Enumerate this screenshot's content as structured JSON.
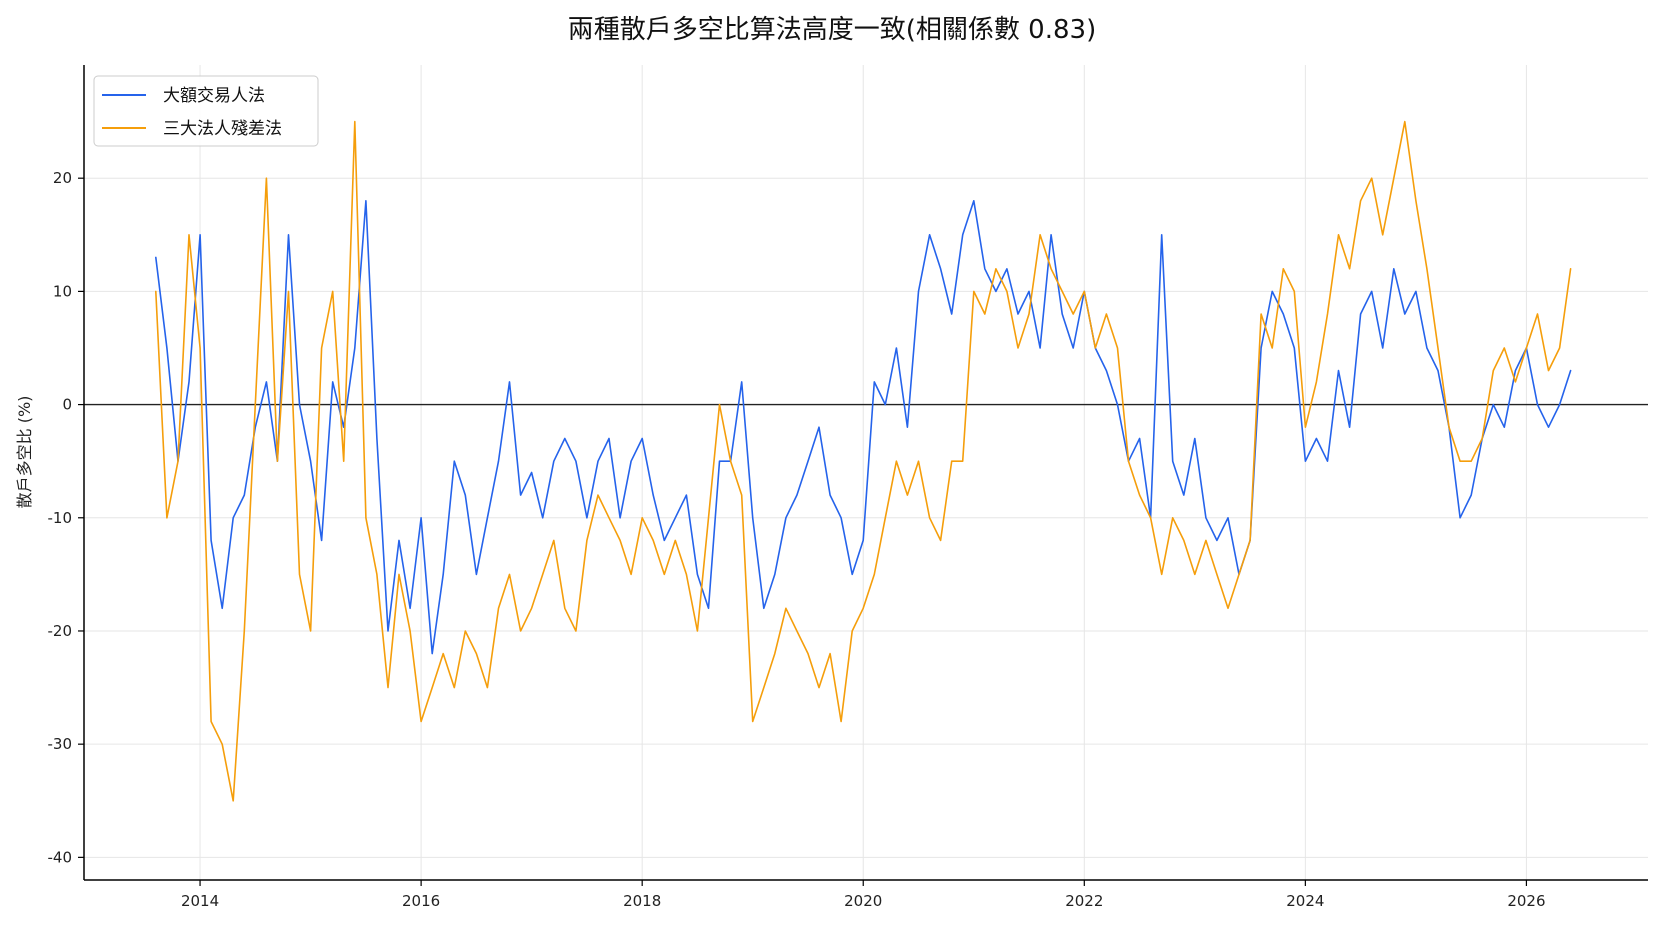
{
  "chart_data": {
    "type": "line",
    "title": "兩種散戶多空比算法高度一致(相關係數 0.83)",
    "xlabel": "",
    "ylabel": "散戶多空比 (%)",
    "xlim": [
      2012.95,
      2027.1
    ],
    "ylim": [
      -42,
      30
    ],
    "x_ticks": [
      2014,
      2016,
      2018,
      2020,
      2022,
      2024,
      2026
    ],
    "y_ticks": [
      -40,
      -30,
      -20,
      -10,
      0,
      10,
      20
    ],
    "grid": true,
    "legend_position": "top-left",
    "reference_line": 0,
    "series": [
      {
        "name": "大額交易人法",
        "color": "#2563eb",
        "x": [
          2013.6,
          2013.7,
          2013.8,
          2013.9,
          2014.0,
          2014.1,
          2014.2,
          2014.3,
          2014.4,
          2014.5,
          2014.6,
          2014.7,
          2014.8,
          2014.9,
          2015.0,
          2015.1,
          2015.2,
          2015.3,
          2015.4,
          2015.5,
          2015.6,
          2015.7,
          2015.8,
          2015.9,
          2016.0,
          2016.1,
          2016.2,
          2016.3,
          2016.4,
          2016.5,
          2016.6,
          2016.7,
          2016.8,
          2016.9,
          2017.0,
          2017.1,
          2017.2,
          2017.3,
          2017.4,
          2017.5,
          2017.6,
          2017.7,
          2017.8,
          2017.9,
          2018.0,
          2018.1,
          2018.2,
          2018.3,
          2018.4,
          2018.5,
          2018.6,
          2018.7,
          2018.8,
          2018.9,
          2019.0,
          2019.1,
          2019.2,
          2019.3,
          2019.4,
          2019.5,
          2019.6,
          2019.7,
          2019.8,
          2019.9,
          2020.0,
          2020.1,
          2020.2,
          2020.3,
          2020.4,
          2020.5,
          2020.6,
          2020.7,
          2020.8,
          2020.9,
          2021.0,
          2021.1,
          2021.2,
          2021.3,
          2021.4,
          2021.5,
          2021.6,
          2021.7,
          2021.8,
          2021.9,
          2022.0,
          2022.1,
          2022.2,
          2022.3,
          2022.4,
          2022.5,
          2022.6,
          2022.7,
          2022.8,
          2022.9,
          2023.0,
          2023.1,
          2023.2,
          2023.3,
          2023.4,
          2023.5,
          2023.6,
          2023.7,
          2023.8,
          2023.9,
          2024.0,
          2024.1,
          2024.2,
          2024.3,
          2024.4,
          2024.5,
          2024.6,
          2024.7,
          2024.8,
          2024.9,
          2025.0,
          2025.1,
          2025.2,
          2025.3,
          2025.4,
          2025.5,
          2025.6,
          2025.7,
          2025.8,
          2025.9,
          2026.0,
          2026.1,
          2026.2,
          2026.3,
          2026.4
        ],
        "y": [
          13,
          5,
          -5,
          2,
          15,
          -12,
          -18,
          -10,
          -8,
          -2,
          2,
          -5,
          15,
          0,
          -5,
          -12,
          2,
          -2,
          5,
          18,
          -3,
          -20,
          -12,
          -18,
          -10,
          -22,
          -15,
          -5,
          -8,
          -15,
          -10,
          -5,
          2,
          -8,
          -6,
          -10,
          -5,
          -3,
          -5,
          -10,
          -5,
          -3,
          -10,
          -5,
          -3,
          -8,
          -12,
          -10,
          -8,
          -15,
          -18,
          -5,
          -5,
          2,
          -10,
          -18,
          -15,
          -10,
          -8,
          -5,
          -2,
          -8,
          -10,
          -15,
          -12,
          2,
          0,
          5,
          -2,
          10,
          15,
          12,
          8,
          15,
          18,
          12,
          10,
          12,
          8,
          10,
          5,
          15,
          8,
          5,
          10,
          5,
          3,
          0,
          -5,
          -3,
          -10,
          15,
          -5,
          -8,
          -3,
          -10,
          -12,
          -10,
          -15,
          -12,
          5,
          10,
          8,
          5,
          -5,
          -3,
          -5,
          3,
          -2,
          8,
          10,
          5,
          12,
          8,
          10,
          5,
          3,
          -2,
          -10,
          -8,
          -3,
          0,
          -2,
          3,
          5,
          0,
          -2,
          0,
          3
        ],
        "style": "solid"
      },
      {
        "name": "三大法人殘差法",
        "color": "#f59e0b",
        "x": [
          2013.6,
          2013.7,
          2013.8,
          2013.9,
          2014.0,
          2014.1,
          2014.2,
          2014.3,
          2014.4,
          2014.5,
          2014.6,
          2014.7,
          2014.8,
          2014.9,
          2015.0,
          2015.1,
          2015.2,
          2015.3,
          2015.4,
          2015.5,
          2015.6,
          2015.7,
          2015.8,
          2015.9,
          2016.0,
          2016.1,
          2016.2,
          2016.3,
          2016.4,
          2016.5,
          2016.6,
          2016.7,
          2016.8,
          2016.9,
          2017.0,
          2017.1,
          2017.2,
          2017.3,
          2017.4,
          2017.5,
          2017.6,
          2017.7,
          2017.8,
          2017.9,
          2018.0,
          2018.1,
          2018.2,
          2018.3,
          2018.4,
          2018.5,
          2018.6,
          2018.7,
          2018.8,
          2018.9,
          2019.0,
          2019.1,
          2019.2,
          2019.3,
          2019.4,
          2019.5,
          2019.6,
          2019.7,
          2019.8,
          2019.9,
          2020.0,
          2020.1,
          2020.2,
          2020.3,
          2020.4,
          2020.5,
          2020.6,
          2020.7,
          2020.8,
          2020.9,
          2021.0,
          2021.1,
          2021.2,
          2021.3,
          2021.4,
          2021.5,
          2021.6,
          2021.7,
          2021.8,
          2021.9,
          2022.0,
          2022.1,
          2022.2,
          2022.3,
          2022.4,
          2022.5,
          2022.6,
          2022.7,
          2022.8,
          2022.9,
          2023.0,
          2023.1,
          2023.2,
          2023.3,
          2023.4,
          2023.5,
          2023.6,
          2023.7,
          2023.8,
          2023.9,
          2024.0,
          2024.1,
          2024.2,
          2024.3,
          2024.4,
          2024.5,
          2024.6,
          2024.7,
          2024.8,
          2024.9,
          2025.0,
          2025.1,
          2025.2,
          2025.3,
          2025.4,
          2025.5,
          2025.6,
          2025.7,
          2025.8,
          2025.9,
          2026.0,
          2026.1,
          2026.2,
          2026.3,
          2026.4
        ],
        "y": [
          10,
          -10,
          -5,
          15,
          5,
          -28,
          -30,
          -35,
          -20,
          0,
          20,
          -5,
          10,
          -15,
          -20,
          5,
          10,
          -5,
          25,
          -10,
          -15,
          -25,
          -15,
          -20,
          -28,
          -25,
          -22,
          -25,
          -20,
          -22,
          -25,
          -18,
          -15,
          -20,
          -18,
          -15,
          -12,
          -18,
          -20,
          -12,
          -8,
          -10,
          -12,
          -15,
          -10,
          -12,
          -15,
          -12,
          -15,
          -20,
          -10,
          0,
          -5,
          -8,
          -28,
          -25,
          -22,
          -18,
          -20,
          -22,
          -25,
          -22,
          -28,
          -20,
          -18,
          -15,
          -10,
          -5,
          -8,
          -5,
          -10,
          -12,
          -5,
          -5,
          10,
          8,
          12,
          10,
          5,
          8,
          15,
          12,
          10,
          8,
          10,
          5,
          8,
          5,
          -5,
          -8,
          -10,
          -15,
          -10,
          -12,
          -15,
          -12,
          -15,
          -18,
          -15,
          -12,
          8,
          5,
          12,
          10,
          -2,
          2,
          8,
          15,
          12,
          18,
          20,
          15,
          20,
          25,
          18,
          12,
          5,
          -2,
          -5,
          -5,
          -3,
          3,
          5,
          2,
          5,
          8,
          3,
          5,
          12
        ],
        "style": "solid"
      }
    ]
  }
}
